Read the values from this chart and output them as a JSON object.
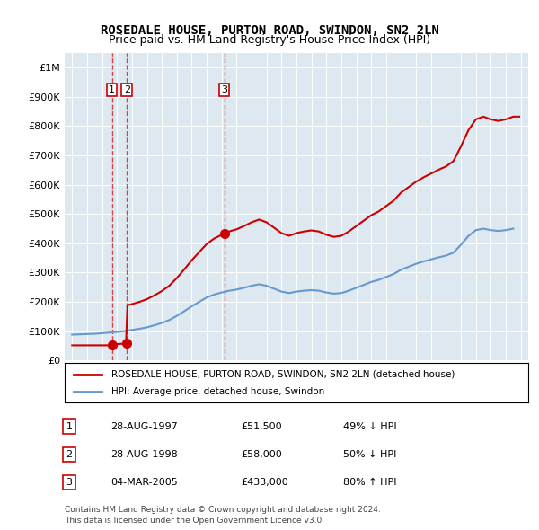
{
  "title": "ROSEDALE HOUSE, PURTON ROAD, SWINDON, SN2 2LN",
  "subtitle": "Price paid vs. HM Land Registry's House Price Index (HPI)",
  "sales": [
    {
      "label": "1",
      "date_num": 1997.66,
      "price": 51500,
      "pct": "49% ↓ HPI",
      "date_str": "28-AUG-1997"
    },
    {
      "label": "2",
      "date_num": 1998.66,
      "price": 58000,
      "pct": "50% ↓ HPI",
      "date_str": "28-AUG-1998"
    },
    {
      "label": "3",
      "date_num": 2005.17,
      "price": 433000,
      "pct": "80% ↑ HPI",
      "date_str": "04-MAR-2005"
    }
  ],
  "legend_line1": "ROSEDALE HOUSE, PURTON ROAD, SWINDON, SN2 2LN (detached house)",
  "legend_line2": "HPI: Average price, detached house, Swindon",
  "footnote1": "Contains HM Land Registry data © Crown copyright and database right 2024.",
  "footnote2": "This data is licensed under the Open Government Licence v3.0.",
  "red_color": "#cc0000",
  "blue_color": "#6699cc",
  "bg_color": "#dde8f0",
  "ylim_max": 1050000,
  "xlim_min": 1994.5,
  "xlim_max": 2025.5
}
